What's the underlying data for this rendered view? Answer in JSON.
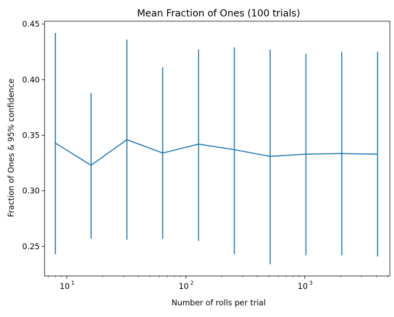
{
  "chart_data": {
    "type": "line",
    "title": "Mean Fraction of Ones (100 trials)",
    "xlabel": "Number of rolls per trial",
    "ylabel": "Fraction of Ones & 95% confidence",
    "x_scale": "log",
    "xlim": [
      6.5,
      5200
    ],
    "ylim": [
      0.2235,
      0.4525
    ],
    "x_major_ticks": [
      {
        "value": 10,
        "base": "10",
        "exp": "1"
      },
      {
        "value": 100,
        "base": "10",
        "exp": "2"
      },
      {
        "value": 1000,
        "base": "10",
        "exp": "3"
      }
    ],
    "y_ticks": [
      {
        "value": 0.25,
        "label": "0.25"
      },
      {
        "value": 0.3,
        "label": "0.30"
      },
      {
        "value": 0.35,
        "label": "0.35"
      },
      {
        "value": 0.4,
        "label": "0.40"
      },
      {
        "value": 0.45,
        "label": "0.45"
      }
    ],
    "grid": false,
    "series": [
      {
        "color": "#1f77b4",
        "x": [
          8,
          16,
          32,
          64,
          128,
          256,
          512,
          1024,
          2048,
          4096
        ],
        "values": [
          0.343,
          0.323,
          0.346,
          0.334,
          0.342,
          0.337,
          0.331,
          0.333,
          0.3335,
          0.333
        ],
        "error_low": [
          0.243,
          0.257,
          0.256,
          0.257,
          0.255,
          0.243,
          0.234,
          0.242,
          0.242,
          0.241
        ],
        "error_high": [
          0.442,
          0.388,
          0.436,
          0.411,
          0.427,
          0.429,
          0.427,
          0.423,
          0.425,
          0.425
        ]
      }
    ]
  }
}
